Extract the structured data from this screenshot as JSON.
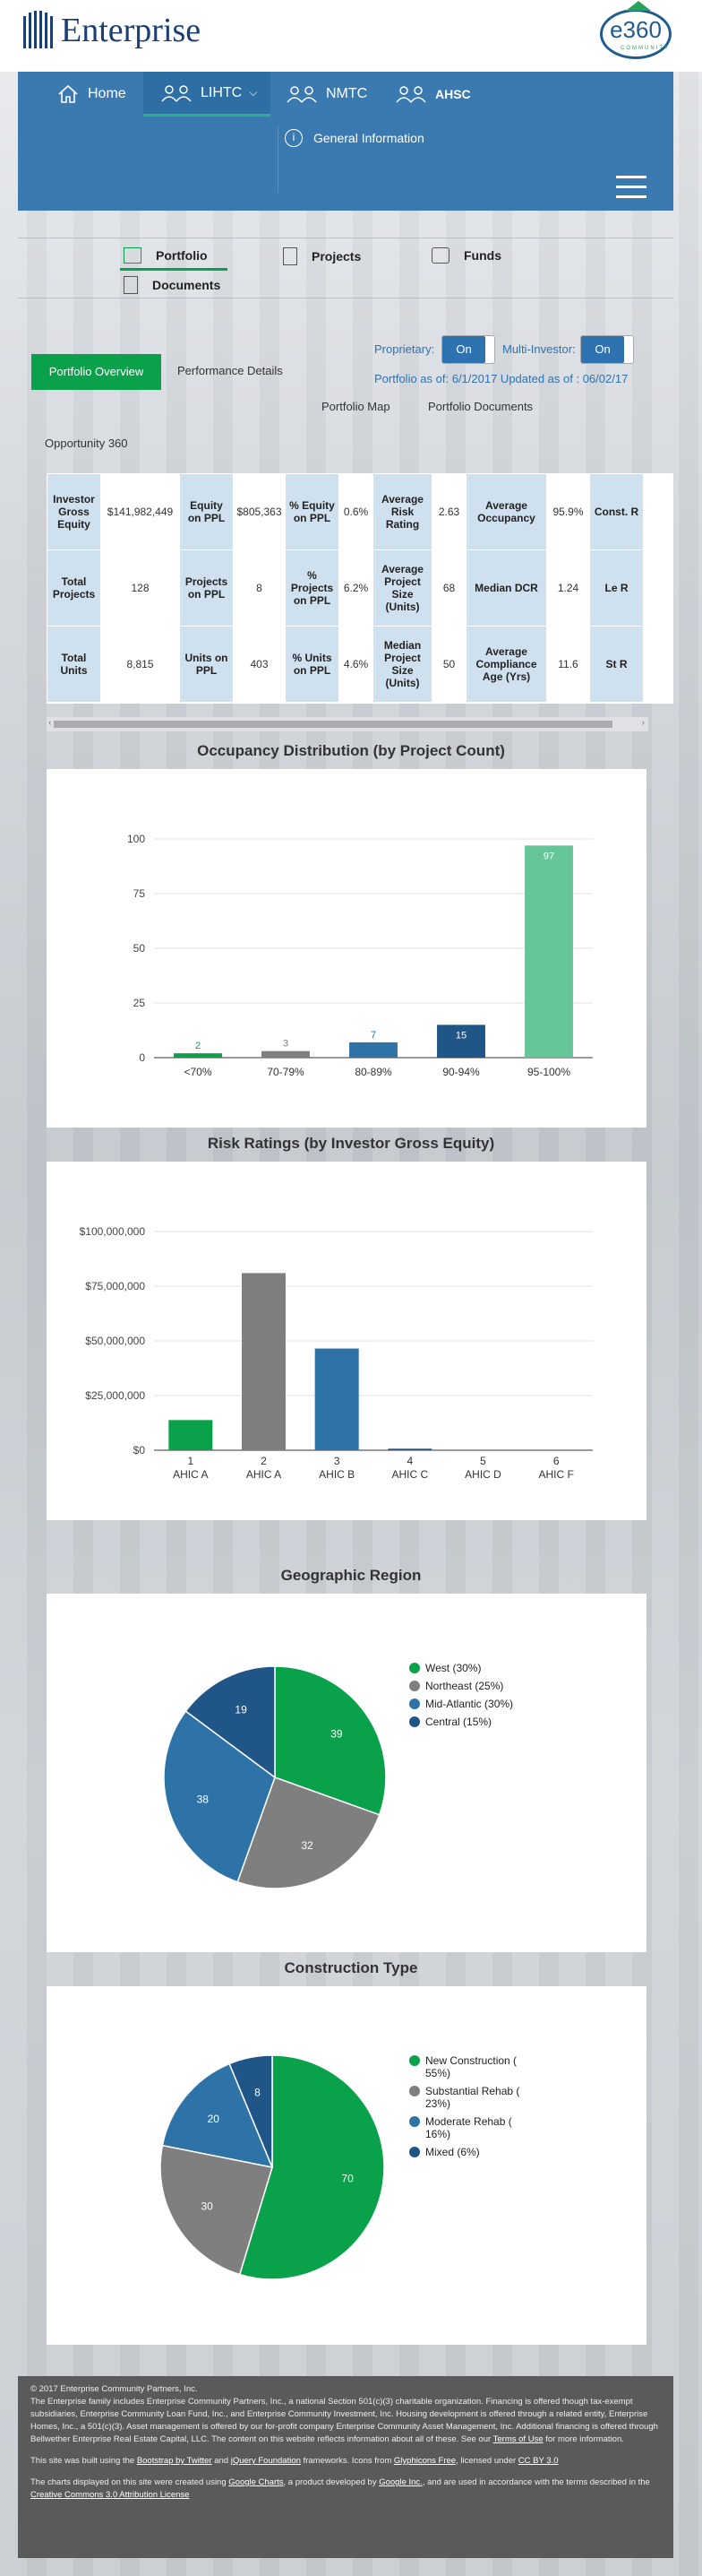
{
  "brand": {
    "logo_text": "Enterprise",
    "e360_text": "e360",
    "e360_sub": "COMMUNITY"
  },
  "nav": {
    "items": [
      {
        "label": "Home"
      },
      {
        "label": "LIHTC"
      },
      {
        "label": "NMTC"
      },
      {
        "label": "AHSC"
      }
    ],
    "general": "General Information"
  },
  "subnav": {
    "items": [
      {
        "label": "Portfolio"
      },
      {
        "label": "Projects"
      },
      {
        "label": "Funds"
      },
      {
        "label": "Documents"
      }
    ]
  },
  "tabs": {
    "portfolio_overview": "Portfolio Overview",
    "performance_details": "Performance Details",
    "portfolio_map": "Portfolio Map",
    "portfolio_documents": "Portfolio Documents"
  },
  "filters": {
    "proprietary_label": "Proprietary:",
    "proprietary_value": "On",
    "multi_investor_label": "Multi-Investor:",
    "multi_investor_value": "On",
    "portfolio_as_of": "Portfolio as of: 6/1/2017 Updated as of : 06/02/17"
  },
  "opportunity": "Opportunity 360",
  "metrics": {
    "rows": [
      [
        "Investor Gross Equity",
        "$141,982,449",
        "Equity on PPL",
        "$805,363",
        "% Equity on PPL",
        "0.6%",
        "Average Risk Rating",
        "2.63",
        "Average Occupancy",
        "95.9%",
        "Const. R"
      ],
      [
        "Total Projects",
        "128",
        "Projects on PPL",
        "8",
        "% Projects on PPL",
        "6.2%",
        "Average Project Size (Units)",
        "68",
        "Median DCR",
        "1.24",
        "Le R"
      ],
      [
        "Total Units",
        "8,815",
        "Units on PPL",
        "403",
        "% Units on PPL",
        "4.6%",
        "Median Project Size (Units)",
        "50",
        "Average Compliance Age (Yrs)",
        "11.6",
        "St R"
      ]
    ]
  },
  "occupancy": {
    "title": "Occupancy Distribution (by Project Count)",
    "chart_data": {
      "type": "bar",
      "categories": [
        "<70%",
        "70-79%",
        "80-89%",
        "90-94%",
        "95-100%"
      ],
      "values": [
        2,
        3,
        7,
        15,
        97
      ],
      "ylim": [
        0,
        100
      ],
      "yticks": [
        "0",
        "25",
        "50",
        "75",
        "100"
      ],
      "colors": [
        "#0aa14b",
        "#7f7f7f",
        "#2e73a8",
        "#1f5587",
        "#66c69a"
      ]
    }
  },
  "risk": {
    "title": "Risk Ratings (by Investor Gross Equity)",
    "chart_data": {
      "type": "bar",
      "categories": [
        [
          "1",
          "AHIC A"
        ],
        [
          "2",
          "AHIC A"
        ],
        [
          "3",
          "AHIC B"
        ],
        [
          "4",
          "AHIC C"
        ],
        [
          "5",
          "AHIC D"
        ],
        [
          "6",
          "AHIC F"
        ]
      ],
      "values": [
        13800000,
        81000000,
        46500000,
        700000,
        0,
        0
      ],
      "ylim": [
        0,
        100000000
      ],
      "yticks": [
        "$0",
        "$25,000,000",
        "$50,000,000",
        "$75,000,000",
        "$100,000,000"
      ],
      "colors": [
        "#0aa14b",
        "#7f7f7f",
        "#2e73a8",
        "#1f5587",
        "#1f5587",
        "#1f5587"
      ]
    }
  },
  "region": {
    "title": "Geographic Region",
    "chart_data": {
      "type": "pie",
      "labels": [
        "West (30%)",
        "Northeast (25%)",
        "Mid-Atlantic (30%)",
        "Central (15%)"
      ],
      "values": [
        39,
        32,
        38,
        19
      ],
      "colors": [
        "#0aa14b",
        "#7f7f7f",
        "#2e73a8",
        "#1f5587"
      ]
    }
  },
  "construction": {
    "title": "Construction Type",
    "chart_data": {
      "type": "pie",
      "labels": [
        "New Construction ( 55%)",
        "Substantial Rehab ( 23%)",
        "Moderate Rehab ( 16%)",
        "Mixed (6%)"
      ],
      "values": [
        70,
        30,
        20,
        8
      ],
      "colors": [
        "#0aa14b",
        "#7f7f7f",
        "#2e73a8",
        "#1f5587"
      ]
    }
  },
  "footer": {
    "p1": "© 2017 Enterprise Community Partners, Inc.",
    "p2": "The Enterprise family includes Enterprise Community Partners, Inc., a national Section 501(c)(3) charitable organization. Financing is offered though tax-exempt subsidiaries, Enterprise Community Loan Fund, Inc., and Enterprise Community Investment, Inc. Housing development is offered through a related entity, Enterprise Homes, Inc., a 501(c)(3). Asset management is offered by our for-profit company Enterprise Community Asset Management, Inc. Additional financing is offered through Bellwether Enterprise Real Estate Capital, LLC. The content on this website reflects information about all of these. See our",
    "terms": "Terms of Use",
    "p2_end": "for more information.",
    "p3_a": "This site was built using the",
    "bootstrap": "Bootstrap by Twitter",
    "and": "and",
    "jquery": "jQuery Foundation",
    "p3_b": "frameworks. Icons from",
    "glyph": "Glyphicons Free",
    "p3_c": ", licensed under",
    "ccby": "CC BY 3.0",
    "p4_a": "The charts displayed on this site were created using",
    "gcharts": "Google Charts",
    "p4_b": ", a product developed by",
    "google": "Google Inc.",
    "p4_c": ", and are used in accordance with the terms described in the",
    "cc": "Creative Commons 3.0 Attribution License"
  }
}
